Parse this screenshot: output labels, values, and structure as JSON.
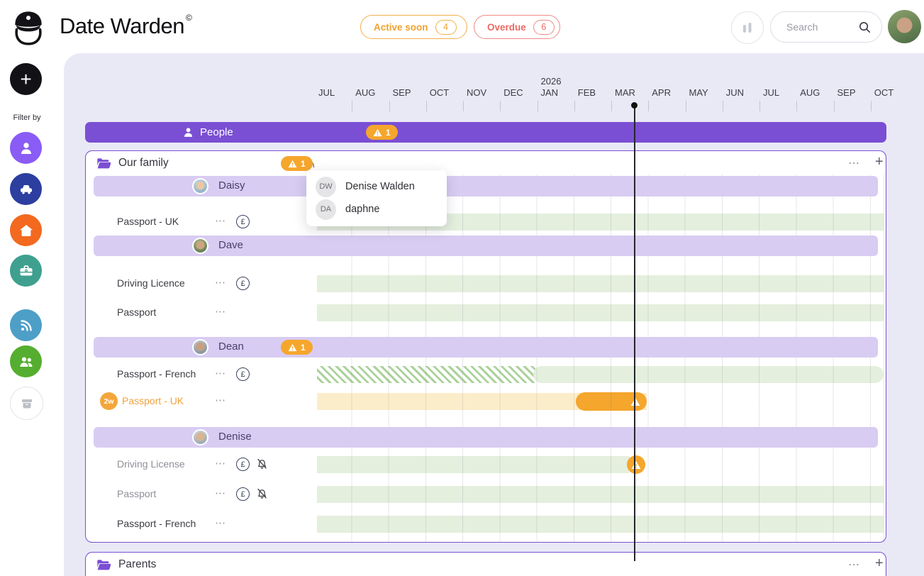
{
  "header": {
    "app_title": "Date Warden",
    "trademark": "©",
    "active_soon_label": "Active soon",
    "active_soon_count": "4",
    "overdue_label": "Overdue",
    "overdue_count": "6",
    "search_placeholder": "Search"
  },
  "sidebar": {
    "add_label": "+",
    "filter_label": "Filter by",
    "filters": [
      {
        "name": "people",
        "icon": "person-icon",
        "color": "#8a5cf5"
      },
      {
        "name": "vehicles",
        "icon": "car-icon",
        "color": "#2c3e9f"
      },
      {
        "name": "home",
        "icon": "house-icon",
        "color": "#f2691f"
      },
      {
        "name": "work",
        "icon": "briefcase-icon",
        "color": "#3fa08f"
      },
      {
        "name": "subscriptions",
        "icon": "rss-icon",
        "color": "#4d9fc7"
      },
      {
        "name": "groups",
        "icon": "people-icon",
        "color": "#55ae2f"
      },
      {
        "name": "archive",
        "icon": "archive-icon",
        "color": "#ffffff"
      }
    ]
  },
  "timeline": {
    "year_label": "2026",
    "year_month_index": 6,
    "months": [
      "JUL",
      "AUG",
      "SEP",
      "OCT",
      "NOV",
      "DEC",
      "JAN",
      "FEB",
      "MAR",
      "APR",
      "MAY",
      "JUN",
      "JUL",
      "AUG",
      "SEP",
      "OCT"
    ],
    "today_units": 8.63
  },
  "sections": {
    "people": {
      "label": "People",
      "warning_count": "1"
    },
    "family": {
      "label": "Our family",
      "warning_count": "1"
    },
    "parents": {
      "label": "Parents"
    }
  },
  "popup": {
    "items": [
      {
        "initials": "DW",
        "name": "Denise Walden"
      },
      {
        "initials": "DA",
        "name": "daphne"
      }
    ]
  },
  "members": [
    {
      "name": "Daisy",
      "docs": [
        {
          "label": "Passport - UK",
          "bar": {
            "kind": "active",
            "start": 0.06,
            "end": 15.35
          }
        }
      ]
    },
    {
      "name": "Dave",
      "docs": [
        {
          "label": "Driving Licence",
          "bar": {
            "kind": "active",
            "start": 0.06,
            "end": 15.35
          }
        },
        {
          "label": "Passport",
          "bar": {
            "kind": "active",
            "start": 0.06,
            "end": 15.35
          }
        }
      ]
    },
    {
      "name": "Dean",
      "warning_count": "1",
      "docs": [
        {
          "label": "Passport - French",
          "bar": {
            "kind": "hatched",
            "start": 0.06,
            "hatch_end": 6.0,
            "end": 15.35
          }
        },
        {
          "label": "Passport - UK",
          "badge": "2w",
          "bar": {
            "kind": "expiring",
            "start": 0.06,
            "end": 8.96,
            "pill_start": 7.04,
            "pill_end": 8.96
          }
        }
      ]
    },
    {
      "name": "Denise",
      "docs": [
        {
          "label": "Driving License",
          "bar": {
            "kind": "warning",
            "start": 0.06,
            "end": 8.5,
            "marker": 8.67
          }
        },
        {
          "label": "Passport",
          "bar": {
            "kind": "active",
            "start": 0.06,
            "end": 15.35
          }
        },
        {
          "label": "Passport - French",
          "bar": {
            "kind": "active",
            "start": 0.06,
            "end": 15.35
          }
        }
      ]
    },
    {
      "name": "Parents"
    }
  ],
  "colors": {
    "accent_purple": "#7a4fd3",
    "subband_purple": "#d8ccf2",
    "warning_orange": "#f5a62c",
    "overdue_red": "#e96a63",
    "valid_green": "#e4efdd",
    "expiring_cream": "#fcedca",
    "panel_lavender": "#e9e9f6"
  }
}
